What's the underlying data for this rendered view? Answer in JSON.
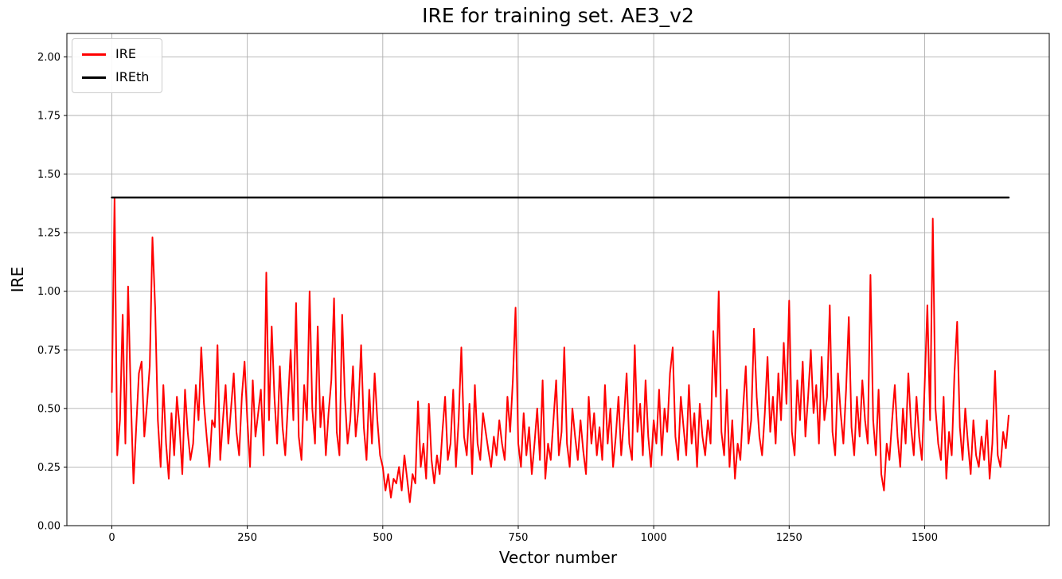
{
  "chart_data": {
    "type": "line",
    "title": "IRE for training set. AE3_v2",
    "xlabel": "Vector number",
    "ylabel": "IRE",
    "xlim": [
      -83,
      1730
    ],
    "ylim": [
      0,
      2.1
    ],
    "grid": true,
    "grid_color": "#b0b0b0",
    "legend_position": "upper left",
    "xticks": [
      0,
      250,
      500,
      750,
      1000,
      1250,
      1500
    ],
    "xtick_labels": [
      "0",
      "250",
      "500",
      "750",
      "1000",
      "1250",
      "1500"
    ],
    "yticks": [
      0,
      0.25,
      0.5,
      0.75,
      1.0,
      1.25,
      1.5,
      1.75,
      2.0
    ],
    "ytick_labels": [
      "0.00",
      "0.25",
      "0.50",
      "0.75",
      "1.00",
      "1.25",
      "1.50",
      "1.75",
      "2.00"
    ],
    "series": [
      {
        "name": "IRE",
        "color": "#ff0000",
        "line_width": 2,
        "x_start": 0,
        "x_step": 5,
        "values": [
          0.57,
          1.4,
          0.3,
          0.45,
          0.9,
          0.35,
          1.02,
          0.55,
          0.18,
          0.42,
          0.65,
          0.7,
          0.38,
          0.52,
          0.68,
          1.23,
          0.93,
          0.45,
          0.25,
          0.6,
          0.35,
          0.2,
          0.48,
          0.3,
          0.55,
          0.42,
          0.22,
          0.58,
          0.4,
          0.28,
          0.35,
          0.6,
          0.45,
          0.76,
          0.52,
          0.38,
          0.25,
          0.45,
          0.42,
          0.77,
          0.28,
          0.45,
          0.6,
          0.35,
          0.5,
          0.65,
          0.4,
          0.3,
          0.55,
          0.7,
          0.45,
          0.25,
          0.62,
          0.38,
          0.48,
          0.58,
          0.3,
          1.08,
          0.45,
          0.85,
          0.55,
          0.35,
          0.68,
          0.42,
          0.3,
          0.52,
          0.75,
          0.45,
          0.95,
          0.38,
          0.28,
          0.6,
          0.45,
          1.0,
          0.5,
          0.35,
          0.85,
          0.42,
          0.55,
          0.3,
          0.48,
          0.62,
          0.97,
          0.4,
          0.3,
          0.9,
          0.55,
          0.35,
          0.45,
          0.68,
          0.38,
          0.5,
          0.77,
          0.42,
          0.28,
          0.58,
          0.35,
          0.65,
          0.45,
          0.3,
          0.25,
          0.15,
          0.22,
          0.12,
          0.2,
          0.18,
          0.25,
          0.15,
          0.3,
          0.2,
          0.1,
          0.22,
          0.18,
          0.53,
          0.25,
          0.35,
          0.2,
          0.52,
          0.28,
          0.18,
          0.3,
          0.22,
          0.4,
          0.55,
          0.28,
          0.35,
          0.58,
          0.25,
          0.45,
          0.76,
          0.38,
          0.3,
          0.52,
          0.22,
          0.6,
          0.35,
          0.28,
          0.48,
          0.4,
          0.32,
          0.25,
          0.38,
          0.3,
          0.45,
          0.35,
          0.28,
          0.55,
          0.4,
          0.62,
          0.93,
          0.35,
          0.25,
          0.48,
          0.3,
          0.42,
          0.22,
          0.35,
          0.5,
          0.28,
          0.62,
          0.2,
          0.35,
          0.28,
          0.45,
          0.62,
          0.3,
          0.4,
          0.76,
          0.35,
          0.25,
          0.5,
          0.38,
          0.28,
          0.45,
          0.32,
          0.22,
          0.55,
          0.35,
          0.48,
          0.3,
          0.42,
          0.28,
          0.6,
          0.35,
          0.5,
          0.25,
          0.38,
          0.55,
          0.3,
          0.45,
          0.65,
          0.35,
          0.28,
          0.77,
          0.4,
          0.52,
          0.3,
          0.62,
          0.38,
          0.25,
          0.45,
          0.35,
          0.58,
          0.3,
          0.5,
          0.4,
          0.65,
          0.76,
          0.38,
          0.28,
          0.55,
          0.42,
          0.3,
          0.6,
          0.35,
          0.48,
          0.25,
          0.52,
          0.38,
          0.3,
          0.45,
          0.35,
          0.83,
          0.55,
          1.0,
          0.4,
          0.3,
          0.58,
          0.25,
          0.45,
          0.2,
          0.35,
          0.28,
          0.5,
          0.68,
          0.35,
          0.45,
          0.84,
          0.55,
          0.38,
          0.3,
          0.48,
          0.72,
          0.4,
          0.55,
          0.35,
          0.65,
          0.45,
          0.78,
          0.52,
          0.96,
          0.4,
          0.3,
          0.62,
          0.45,
          0.7,
          0.38,
          0.55,
          0.75,
          0.48,
          0.6,
          0.35,
          0.72,
          0.45,
          0.55,
          0.94,
          0.4,
          0.3,
          0.65,
          0.48,
          0.35,
          0.58,
          0.89,
          0.42,
          0.3,
          0.55,
          0.38,
          0.62,
          0.45,
          0.35,
          1.07,
          0.45,
          0.3,
          0.58,
          0.22,
          0.15,
          0.35,
          0.28,
          0.45,
          0.6,
          0.38,
          0.25,
          0.5,
          0.35,
          0.65,
          0.42,
          0.3,
          0.55,
          0.38,
          0.28,
          0.6,
          0.94,
          0.45,
          1.31,
          0.5,
          0.35,
          0.28,
          0.55,
          0.2,
          0.4,
          0.3,
          0.65,
          0.87,
          0.42,
          0.28,
          0.5,
          0.35,
          0.22,
          0.45,
          0.3,
          0.25,
          0.38,
          0.28,
          0.45,
          0.2,
          0.35,
          0.66,
          0.3,
          0.25,
          0.4,
          0.33,
          0.47
        ]
      },
      {
        "name": "IREth",
        "color": "#000000",
        "line_width": 2.5,
        "x": [
          0,
          1655
        ],
        "values": [
          1.4,
          1.4
        ]
      }
    ]
  }
}
